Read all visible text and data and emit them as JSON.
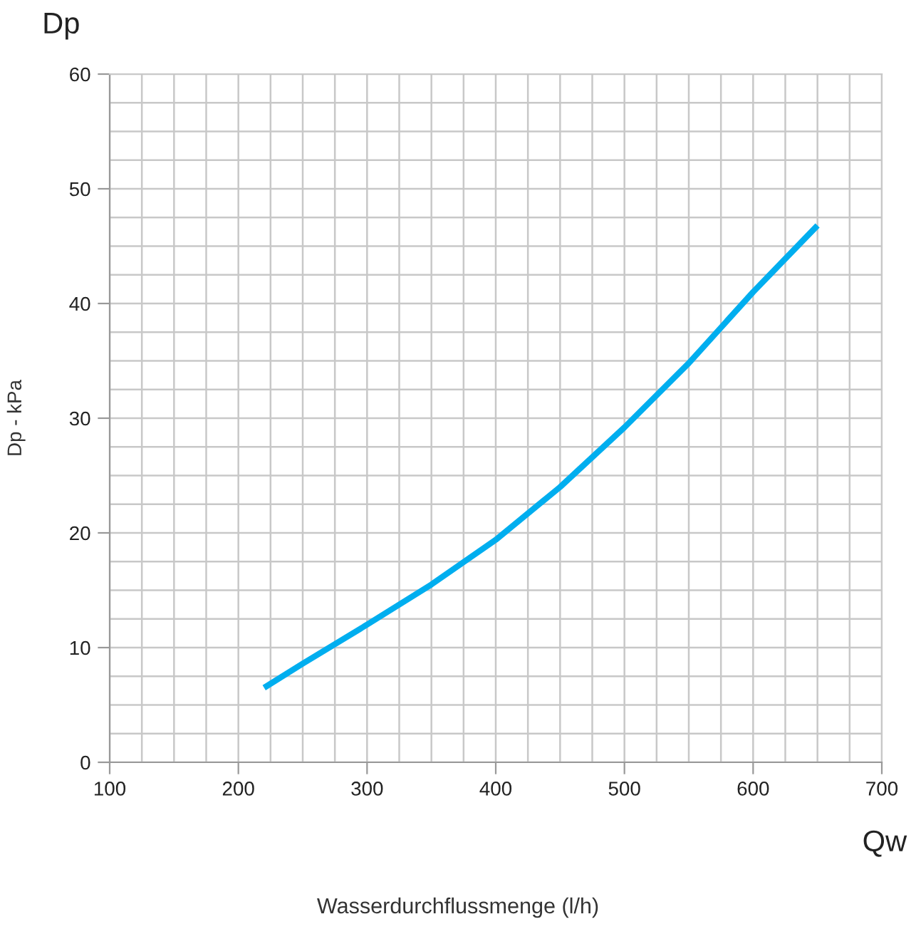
{
  "chart_data": {
    "type": "line",
    "xlabel": "Wasserdurchflussmenge (l/h)",
    "ylabel": "Dp - kPa",
    "annotations": [
      "Dp",
      "Qw"
    ],
    "series": [
      {
        "color": "#00aeef",
        "x": [
          220,
          250,
          300,
          350,
          400,
          450,
          500,
          550,
          600,
          650
        ],
        "values": [
          6.5,
          8.6,
          12.0,
          15.5,
          19.4,
          24.0,
          29.2,
          34.8,
          41.0,
          46.8
        ]
      }
    ],
    "xlim": [
      100,
      700
    ],
    "ylim": [
      0,
      60
    ],
    "xticks": [
      100,
      {
        "value": 125,
        "label": null
      },
      {
        "value": 150,
        "label": null
      },
      {
        "value": 175,
        "label": null
      },
      200,
      {
        "value": 225,
        "label": null
      },
      {
        "value": 250,
        "label": null
      },
      {
        "value": 275,
        "label": null
      },
      300,
      {
        "value": 325,
        "label": null
      },
      {
        "value": 350,
        "label": null
      },
      {
        "value": 375,
        "label": null
      },
      400,
      {
        "value": 425,
        "label": null
      },
      {
        "value": 450,
        "label": null
      },
      {
        "value": 475,
        "label": null
      },
      500,
      {
        "value": 525,
        "label": null
      },
      {
        "value": 550,
        "label": null
      },
      {
        "value": 575,
        "label": null
      },
      600,
      {
        "value": 625,
        "label": null
      },
      {
        "value": 650,
        "label": null
      },
      {
        "value": 675,
        "label": null
      },
      700
    ],
    "yticks": [
      0,
      {
        "value": 2.5,
        "label": null
      },
      {
        "value": 5,
        "label": null
      },
      {
        "value": 7.5,
        "label": null
      },
      10,
      {
        "value": 12.5,
        "label": null
      },
      {
        "value": 15,
        "label": null
      },
      {
        "value": 17.5,
        "label": null
      },
      20,
      {
        "value": 22.5,
        "label": null
      },
      {
        "value": 25,
        "label": null
      },
      {
        "value": 27.5,
        "label": null
      },
      30,
      {
        "value": 32.5,
        "label": null
      },
      {
        "value": 35,
        "label": null
      },
      {
        "value": 37.5,
        "label": null
      },
      40,
      {
        "value": 42.5,
        "label": null
      },
      {
        "value": 45,
        "label": null
      },
      {
        "value": 47.5,
        "label": null
      },
      50,
      {
        "value": 52.5,
        "label": null
      },
      {
        "value": 55,
        "label": null
      },
      {
        "value": 57.5,
        "label": null
      },
      60
    ],
    "grid": true,
    "legend": false
  }
}
